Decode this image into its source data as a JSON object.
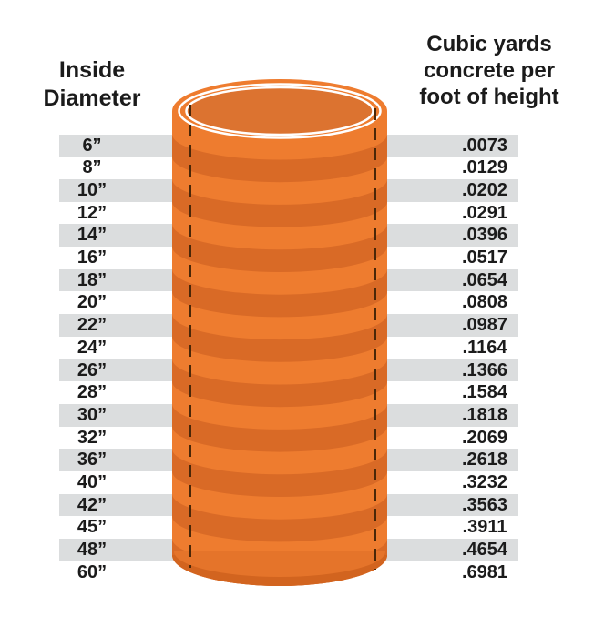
{
  "headers": {
    "left": "Inside\nDiameter",
    "right": "Cubic yards\nconcrete per\nfoot of height"
  },
  "table": {
    "rows": [
      {
        "d": "6”",
        "v": ".0073"
      },
      {
        "d": "8”",
        "v": ".0129"
      },
      {
        "d": "10”",
        "v": ".0202"
      },
      {
        "d": "12”",
        "v": ".0291"
      },
      {
        "d": "14”",
        "v": ".0396"
      },
      {
        "d": "16”",
        "v": ".0517"
      },
      {
        "d": "18”",
        "v": ".0654"
      },
      {
        "d": "20”",
        "v": ".0808"
      },
      {
        "d": "22”",
        "v": ".0987"
      },
      {
        "d": "24”",
        "v": ".1164"
      },
      {
        "d": "26”",
        "v": ".1366"
      },
      {
        "d": "28”",
        "v": ".1584"
      },
      {
        "d": "30”",
        "v": ".1818"
      },
      {
        "d": "32”",
        "v": ".2069"
      },
      {
        "d": "36”",
        "v": ".2618"
      },
      {
        "d": "40”",
        "v": ".3232"
      },
      {
        "d": "42”",
        "v": ".3563"
      },
      {
        "d": "45”",
        "v": ".3911"
      },
      {
        "d": "48”",
        "v": ".4654"
      },
      {
        "d": "60”",
        "v": ".6981"
      }
    ]
  },
  "chart_data": {
    "type": "table",
    "columns": [
      "Inside Diameter",
      "Cubic yards concrete per foot of height"
    ],
    "diameters_in": [
      6,
      8,
      10,
      12,
      14,
      16,
      18,
      20,
      22,
      24,
      26,
      28,
      30,
      32,
      36,
      40,
      42,
      45,
      48,
      60
    ],
    "cubic_yards_per_foot": [
      0.0073,
      0.0129,
      0.0202,
      0.0291,
      0.0396,
      0.0517,
      0.0654,
      0.0808,
      0.0987,
      0.1164,
      0.1366,
      0.1584,
      0.1818,
      0.2069,
      0.2618,
      0.3232,
      0.3563,
      0.3911,
      0.4654,
      0.6981
    ],
    "grid": "alternating-row-stripes",
    "illustration": "orange concrete form tube with dashed inside-diameter lines"
  },
  "colors": {
    "background": "#FFFFFF",
    "text": "#1B1B1B",
    "row_stripe_gray": "#DBDDDE",
    "tube_body": "#EE7C2F",
    "tube_band_dark": "#D96A26",
    "tube_top_inner": "#DC7330",
    "tube_bottom_cap": "#E5742A",
    "tube_bottom_rim": "#D2641F",
    "rim_ring_white": "#FFFFFF",
    "dashed_line": "#4A2708"
  }
}
